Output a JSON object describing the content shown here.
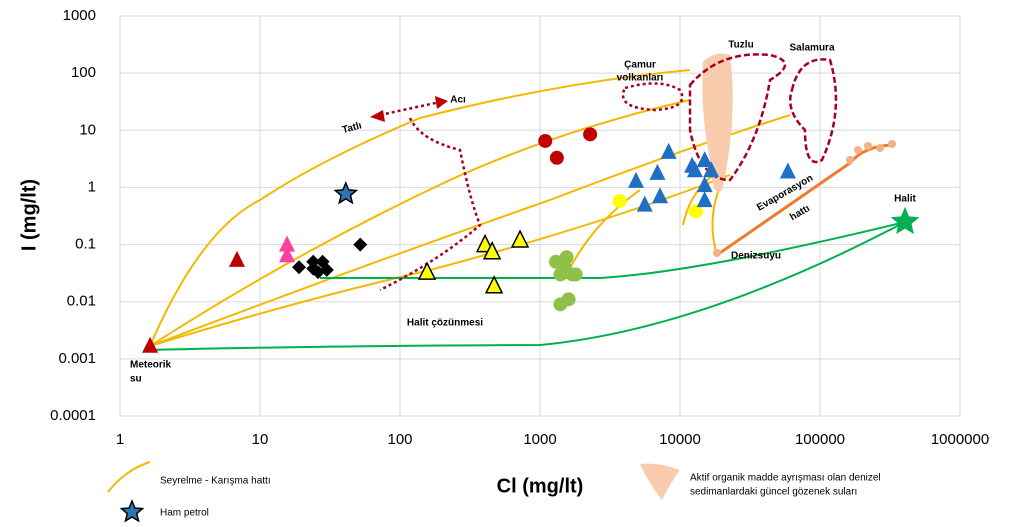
{
  "chart_data": {
    "type": "scatter",
    "xlabel": "Cl (mg/lt)",
    "ylabel": "I (mg/lt)",
    "xscale": "log",
    "yscale": "log",
    "xlim": [
      1,
      1000000
    ],
    "ylim": [
      0.0001,
      1000
    ],
    "xticks": [
      1,
      10,
      100,
      1000,
      10000,
      100000,
      1000000
    ],
    "yticks": [
      0.0001,
      0.001,
      0.01,
      0.1,
      1,
      10,
      100,
      1000
    ],
    "grid": true,
    "series": [
      {
        "marker": "triangle",
        "color": "#c00000",
        "x": [
          1.64,
          6.85
        ],
        "values": [
          0.0017,
          0.054
        ]
      },
      {
        "marker": "triangle",
        "color": "#ff3fa0",
        "x": [
          15.6,
          15.6
        ],
        "values": [
          0.1,
          0.065
        ]
      },
      {
        "marker": "diamond",
        "color": "#000000",
        "x": [
          19,
          24,
          26,
          28,
          30,
          24,
          52
        ],
        "values": [
          0.04,
          0.05,
          0.033,
          0.05,
          0.036,
          0.038,
          0.1
        ]
      },
      {
        "name": "Ham petrol",
        "marker": "star",
        "color": "#2e75b6",
        "edgecolor": "#000000",
        "x": [
          41
        ],
        "values": [
          0.77
        ]
      },
      {
        "marker": "triangle",
        "color": "#ffff00",
        "edgecolor": "#000000",
        "x": [
          156,
          405,
          455,
          470,
          720
        ],
        "values": [
          0.033,
          0.1,
          0.075,
          0.019,
          0.12
        ]
      },
      {
        "marker": "circle",
        "color": "#c00000",
        "x": [
          1090,
          1320,
          2280
        ],
        "values": [
          6.5,
          3.3,
          8.5
        ]
      },
      {
        "marker": "circle",
        "color": "#8fc14a",
        "x": [
          1300,
          1550,
          1500,
          1700,
          1400,
          1600,
          1400,
          1800
        ],
        "values": [
          0.05,
          0.06,
          0.04,
          0.03,
          0.03,
          0.011,
          0.009,
          0.03
        ]
      },
      {
        "marker": "circle",
        "color": "#ffff00",
        "x": [
          3700,
          13000
        ],
        "values": [
          0.58,
          0.38
        ]
      },
      {
        "marker": "triangle",
        "color": "#1f6fc5",
        "x": [
          4850,
          5600,
          6900,
          7200,
          8300,
          12200,
          12800,
          15000,
          15000,
          15000,
          16700,
          59000
        ],
        "values": [
          1.3,
          0.5,
          1.8,
          0.7,
          4.2,
          2.4,
          2.0,
          3.0,
          1.1,
          0.6,
          2.0,
          1.9
        ]
      },
      {
        "marker": "star",
        "color": "#00b050",
        "x": [
          405000
        ],
        "values": [
          0.25
        ]
      }
    ],
    "annotations": [
      "Tatlı",
      "Acı",
      "Çamur",
      "volkanları",
      "Tuzlu",
      "Salamura",
      "Evaporasyon",
      "hattı",
      "Denizsuyu",
      "Halit",
      "Halit çözünmesi",
      "Meteorik",
      "su"
    ],
    "line_legend": "Seyrelme - Karışma hattı",
    "shape_legend": [
      "Aktif organik madde ayrışması olan denizel",
      "sedimanlardaki güncel gözenek suları"
    ]
  }
}
